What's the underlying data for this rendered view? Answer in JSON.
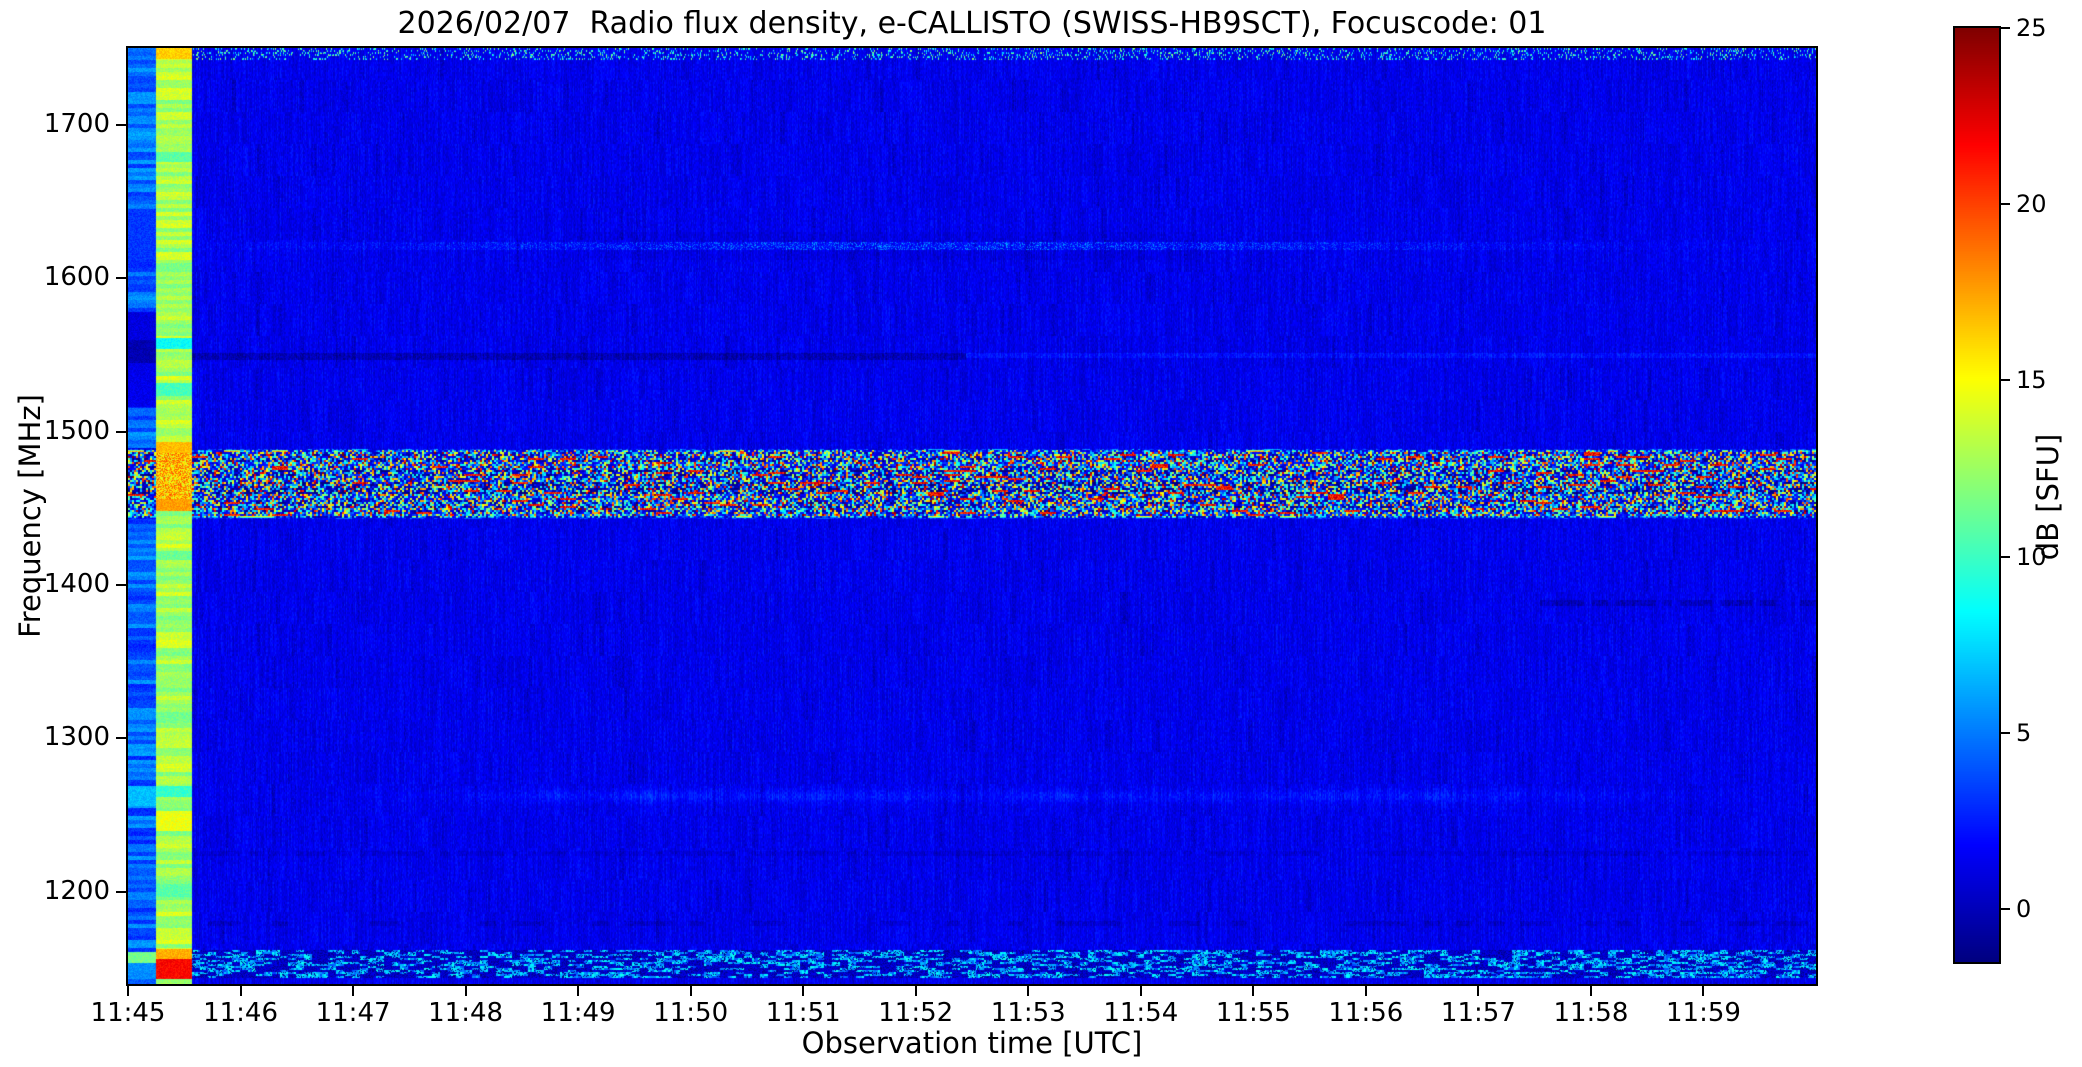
{
  "title": "2026/02/07  Radio flux density, e-CALLISTO (SWISS-HB9SCT), Focuscode: 01",
  "chart_data": {
    "type": "heatmap",
    "subtype": "radio-spectrogram",
    "title": "2026/02/07  Radio flux density, e-CALLISTO (SWISS-HB9SCT), Focuscode: 01",
    "xlabel": "Observation time [UTC]",
    "ylabel": "Frequency [MHz]",
    "x_start": "11:45",
    "x_end": "12:00",
    "x_minutes": 15,
    "x_tick_labels": [
      "11:45",
      "11:46",
      "11:47",
      "11:48",
      "11:49",
      "11:50",
      "11:51",
      "11:52",
      "11:53",
      "11:54",
      "11:55",
      "11:56",
      "11:57",
      "11:58",
      "11:59"
    ],
    "ylim_mhz": [
      1140,
      1750
    ],
    "y_tick_values": [
      1200,
      1300,
      1400,
      1500,
      1600,
      1700
    ],
    "colormap": "jet",
    "clim_db": [
      -1.5,
      25
    ],
    "colorbar_label": "dB [SFU]",
    "colorbar_tick_values": [
      0,
      5,
      10,
      15,
      20,
      25
    ],
    "grid": false,
    "background_noise": {
      "level_db": 1.3,
      "streak_amp": 1.35,
      "pixel_amp": 1.5,
      "dark_patch_chance": 0.05,
      "dark_patch_depth": 1.0
    },
    "features": {
      "top_speckle": {
        "f": [
          1742,
          1750
        ],
        "chance": 0.2,
        "v": [
          4,
          13
        ]
      },
      "faint_line_1621": {
        "f": [
          1618.5,
          1623.5
        ],
        "center_min": 7.2,
        "sigma_min": 4.6,
        "amp": 2.4,
        "smudge_f": [
          1612,
          1630
        ],
        "smudge_t": [
          4,
          9.5
        ],
        "smudge_depth": 0.3
      },
      "split_line_1549": {
        "f": [
          1546.5,
          1551.5
        ],
        "t_split": 7.45,
        "dark_depth": 1.35,
        "bright_f": [
          1548,
          1551
        ],
        "bright_amp": 0.9
      },
      "glow_band_1262": {
        "f_center": 1262.5,
        "f_sigma": 4.2,
        "amp": 1.15,
        "t_ramp": [
          2,
          4
        ],
        "t_hold": 11.5,
        "t_end": 14.8
      },
      "dash_1225": {
        "f": [
          1223.5,
          1226.5
        ],
        "t": [
          0,
          15
        ],
        "depth": 0.8,
        "coverage": 0.75
      },
      "dash_1389": {
        "f": [
          1386.5,
          1390.0
        ],
        "t": [
          12.55,
          15
        ],
        "depth": 1.6,
        "coverage": 0.8
      },
      "dash_1180": {
        "f": [
          1177.5,
          1181.0
        ],
        "t": [
          0,
          15
        ],
        "depth": 1.1,
        "coverage": 0.5
      },
      "rfi_band": {
        "f": [
          1443,
          1489
        ],
        "edge_mhz": 2.5,
        "p_low": 0.42,
        "low": [
          -1.5,
          1.7
        ],
        "p_mid": 0.72,
        "mid": [
          2.5,
          9.5
        ],
        "p_high": 0.92,
        "high": [
          10,
          18
        ],
        "very_high": [
          18,
          25
        ],
        "row_bias_amp": 4,
        "red_run_chance": 0.045,
        "red_run_v": [
          19,
          24
        ]
      },
      "bottom_band": {
        "f": [
          1144,
          1162
        ],
        "dash_chance": 0.5,
        "dash_v": [
          3.5,
          9
        ],
        "bg_v": [
          -0.6,
          1.6
        ],
        "dark_chance": 0.15,
        "dark_v": -1.3
      },
      "cal_stripe_1": {
        "t": [
          0,
          0.25
        ],
        "base": 4.3,
        "row_amp": 1.7,
        "pixel_amp": 0.8,
        "rows": [
          [
            1612,
            1645,
            3.2
          ],
          [
            1560,
            1578,
            1.0
          ],
          [
            1545,
            1560,
            -0.2
          ],
          [
            1516,
            1545,
            1.3
          ],
          [
            1256,
            1269,
            6.8
          ],
          [
            1154,
            1161,
            11.5
          ],
          [
            1143,
            1154,
            5.5
          ]
        ]
      },
      "cal_stripe_2": {
        "t": [
          0.25,
          0.57
        ],
        "base": 12.9,
        "row_amp": 1.4,
        "pixel_amp": 0.9,
        "band_f": [
          1456,
          1486
        ],
        "band_v": [
          13.5,
          20
        ],
        "rows": [
          [
            1743,
            1750,
            16.3
          ],
          [
            1676,
            1682,
            10.8
          ],
          [
            1604,
            1610,
            11.6
          ],
          [
            1554,
            1561,
            8.6
          ],
          [
            1523,
            1532,
            10.2
          ],
          [
            1486,
            1493,
            16.8
          ],
          [
            1448,
            1456,
            17.6
          ],
          [
            1416,
            1422,
            11.2
          ],
          [
            1310,
            1317,
            11.4
          ],
          [
            1262,
            1269,
            9.8
          ],
          [
            1240,
            1253,
            14.6
          ],
          [
            1197,
            1205,
            10.8
          ],
          [
            1156,
            1163,
            17.2
          ],
          [
            1143,
            1156,
            21.6
          ]
        ]
      }
    }
  }
}
